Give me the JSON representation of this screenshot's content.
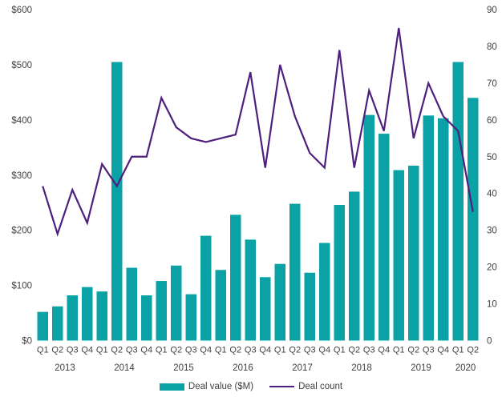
{
  "chart_data": {
    "type": "combo-bar-line",
    "title": "",
    "quarters": [
      "Q1",
      "Q2",
      "Q3",
      "Q4",
      "Q1",
      "Q2",
      "Q3",
      "Q4",
      "Q1",
      "Q2",
      "Q3",
      "Q4",
      "Q1",
      "Q2",
      "Q3",
      "Q4",
      "Q1",
      "Q2",
      "Q3",
      "Q4",
      "Q1",
      "Q2",
      "Q3",
      "Q4",
      "Q1",
      "Q2",
      "Q3",
      "Q4",
      "Q1",
      "Q2"
    ],
    "year_groups": [
      {
        "label": "2013",
        "quarters": 4
      },
      {
        "label": "2014",
        "quarters": 4
      },
      {
        "label": "2015",
        "quarters": 4
      },
      {
        "label": "2016",
        "quarters": 4
      },
      {
        "label": "2017",
        "quarters": 4
      },
      {
        "label": "2018",
        "quarters": 4
      },
      {
        "label": "2019",
        "quarters": 4
      },
      {
        "label": "2020",
        "quarters": 2
      }
    ],
    "series": [
      {
        "name": "Deal value ($M)",
        "type": "bar",
        "axis": "left",
        "color": "#0aa2a4",
        "values": [
          52,
          62,
          82,
          97,
          89,
          505,
          132,
          82,
          108,
          136,
          84,
          190,
          128,
          228,
          183,
          115,
          139,
          248,
          123,
          177,
          246,
          270,
          409,
          375,
          309,
          317,
          408,
          403,
          505,
          440
        ]
      },
      {
        "name": "Deal count",
        "type": "line",
        "axis": "right",
        "color": "#4e1f7e",
        "values": [
          42,
          29,
          41,
          32,
          48,
          42,
          50,
          50,
          66,
          58,
          55,
          54,
          55,
          56,
          73,
          47,
          75,
          61,
          51,
          47,
          79,
          47,
          68,
          57,
          85,
          55,
          70,
          61,
          57,
          35
        ]
      }
    ],
    "left_axis": {
      "min": 0,
      "max": 600,
      "step": 100,
      "prefix": "$",
      "tick_labels": [
        "$0",
        "$100",
        "$200",
        "$300",
        "$400",
        "$500",
        "$600"
      ]
    },
    "right_axis": {
      "min": 0,
      "max": 90,
      "step": 10,
      "tick_labels": [
        "0",
        "10",
        "20",
        "30",
        "40",
        "50",
        "60",
        "70",
        "80",
        "90"
      ]
    },
    "grid": false,
    "axis_lines": false,
    "legend_position": "bottom-center"
  },
  "colors": {
    "bar": "#0aa2a4",
    "line": "#4e1f7e",
    "text": "#404040",
    "background": "#ffffff"
  }
}
